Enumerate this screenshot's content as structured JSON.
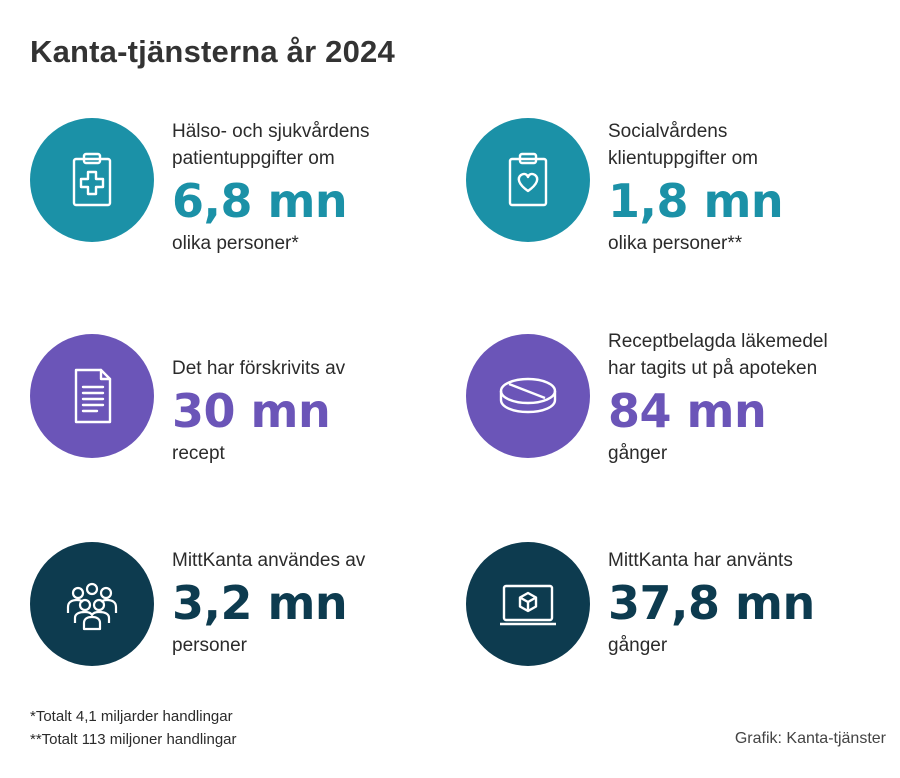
{
  "title": "Kanta-tjänsterna år 2024",
  "stats": [
    {
      "icon": "clipboard-medical-icon",
      "color": "#1b91a7",
      "line1": "Hälso- och sjukvårdens",
      "line2": "patientuppgifter om",
      "value": "6,8 mn",
      "after": "olika personer*"
    },
    {
      "icon": "clipboard-heart-icon",
      "color": "#1b91a7",
      "line1": "Socialvårdens",
      "line2": "klientuppgifter om",
      "value": "1,8 mn",
      "after": "olika personer**"
    },
    {
      "icon": "document-icon",
      "color": "#6b55b8",
      "line1": "Det har förskrivits av",
      "line2": "",
      "value": "30 mn",
      "after": "recept"
    },
    {
      "icon": "pill-icon",
      "color": "#6b55b8",
      "line1": "Receptbelagda läkemedel",
      "line2": "har tagits ut på apoteken",
      "value": "84 mn",
      "after": "gånger"
    },
    {
      "icon": "people-group-icon",
      "color": "#0d3b4f",
      "line1": "MittKanta användes av",
      "line2": "",
      "value": "3,2 mn",
      "after": "personer"
    },
    {
      "icon": "laptop-cube-icon",
      "color": "#0d3b4f",
      "line1": "MittKanta har använts",
      "line2": "",
      "value": "37,8 mn",
      "after": "gånger"
    }
  ],
  "footnotes": [
    "*Totalt 4,1 miljarder handlingar",
    "**Totalt 113 miljoner handlingar"
  ],
  "credit": "Grafik: Kanta-tjänster"
}
